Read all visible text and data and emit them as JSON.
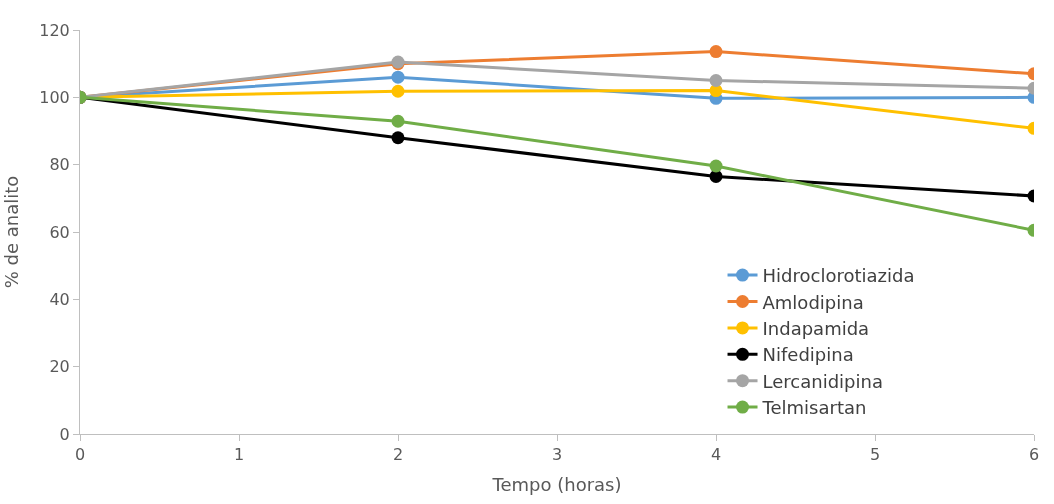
{
  "chart_data": {
    "type": "line",
    "xlabel": "Tempo (horas)",
    "ylabel": "% de analito",
    "x": [
      0,
      2,
      4,
      6
    ],
    "xlim": [
      0,
      6
    ],
    "xticks": [
      0,
      1,
      2,
      3,
      4,
      5,
      6
    ],
    "ylim": [
      0,
      120
    ],
    "yticks": [
      0,
      20,
      40,
      60,
      80,
      100,
      120
    ],
    "legend": "bottom right",
    "marker": "circle",
    "line_style": "solid",
    "series": [
      {
        "name": "Hidroclorotiazida",
        "color": "#5b9bd5",
        "values": [
          100,
          106,
          99.7,
          100
        ]
      },
      {
        "name": "Amlodipina",
        "color": "#ed7d31",
        "values": [
          100,
          110,
          113.6,
          107
        ]
      },
      {
        "name": "Indapamida",
        "color": "#ffc000",
        "values": [
          100,
          101.8,
          102,
          90.8
        ]
      },
      {
        "name": "Nifedipina",
        "color": "#000000",
        "values": [
          100,
          88,
          76.5,
          70.7
        ]
      },
      {
        "name": "Lercanidipina",
        "color": "#a5a5a5",
        "values": [
          100,
          110.5,
          105,
          102.7
        ]
      },
      {
        "name": "Telmisartan",
        "color": "#70ad47",
        "values": [
          100,
          92.9,
          79.6,
          60.5
        ]
      }
    ]
  }
}
